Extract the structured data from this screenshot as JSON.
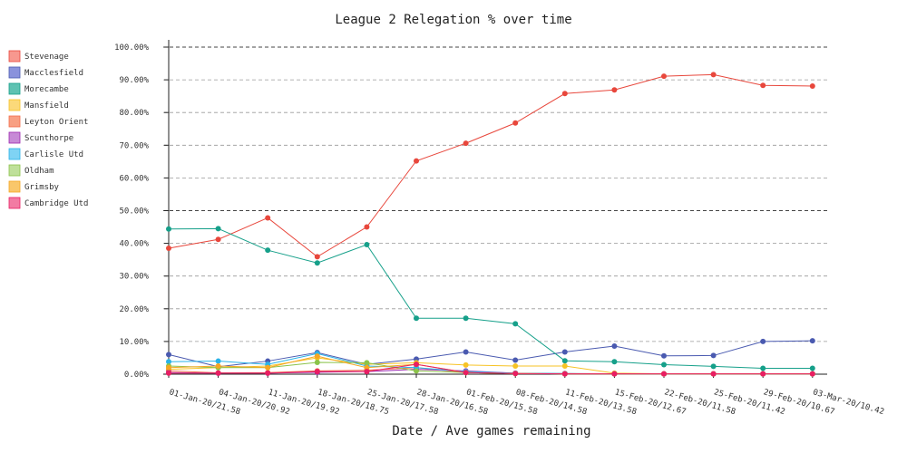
{
  "chart_data": {
    "type": "line",
    "title": "League 2 Relegation % over time",
    "xlabel": "Date / Ave games remaining",
    "ylabel": "",
    "ylim": [
      0,
      100
    ],
    "y_ticks": [
      "0.00%",
      "10.00%",
      "20.00%",
      "30.00%",
      "40.00%",
      "50.00%",
      "60.00%",
      "70.00%",
      "80.00%",
      "90.00%",
      "100.00%"
    ],
    "x": [
      "01-Jan-20/21.58",
      "04-Jan-20/20.92",
      "11-Jan-20/19.92",
      "18-Jan-20/18.75",
      "25-Jan-20/17.58",
      "28-Jan-20/16.58",
      "01-Feb-20/15.58",
      "08-Feb-20/14.58",
      "11-Feb-20/13.58",
      "15-Feb-20/12.67",
      "22-Feb-20/11.58",
      "25-Feb-20/11.42",
      "29-Feb-20/10.67",
      "03-Mar-20/10.42"
    ],
    "legend_position": "left",
    "grid": true,
    "series": [
      {
        "name": "Stevenage",
        "color": "#e8473c",
        "legend_color": "#f7988f",
        "values": [
          38.5,
          41.2,
          47.8,
          35.9,
          45.0,
          65.2,
          70.6,
          76.8,
          85.8,
          86.9,
          91.1,
          91.6,
          88.3,
          88.1
        ]
      },
      {
        "name": "Macclesfield",
        "color": "#4a5ab0",
        "legend_color": "#8a92dc",
        "values": [
          6.0,
          2.3,
          4.0,
          6.6,
          3.0,
          4.6,
          6.8,
          4.3,
          6.8,
          8.6,
          5.6,
          5.7,
          10.0,
          10.2
        ]
      },
      {
        "name": "Morecambe",
        "color": "#16a08a",
        "legend_color": "#5fc2b2",
        "values": [
          44.4,
          44.5,
          37.9,
          34.0,
          39.6,
          17.1,
          17.1,
          15.4,
          4.1,
          3.8,
          2.9,
          2.4,
          1.8,
          1.8
        ]
      },
      {
        "name": "Mansfield",
        "color": "#f7c325",
        "legend_color": "#fbd97a",
        "values": [
          1.5,
          2.0,
          2.5,
          5.0,
          3.0,
          3.5,
          2.8,
          2.5,
          2.5,
          0.3,
          0.1,
          0.1,
          0.1,
          0.1
        ]
      },
      {
        "name": "Leyton Orient",
        "color": "#f26b4a",
        "legend_color": "#f8a083",
        "values": [
          1.0,
          0.4,
          0.5,
          1.0,
          1.2,
          2.0,
          0.5,
          0.2,
          0.2,
          0.1,
          0.1,
          0.1,
          0.1,
          0.1
        ]
      },
      {
        "name": "Scunthorpe",
        "color": "#9c27b0",
        "legend_color": "#c78ad6",
        "values": [
          0.5,
          0.3,
          0.3,
          0.6,
          0.8,
          1.5,
          1.0,
          0.3,
          0.1,
          0.1,
          0.1,
          0.1,
          0.1,
          0.1
        ]
      },
      {
        "name": "Carlisle Utd",
        "color": "#2ab3e8",
        "legend_color": "#7fd3f4",
        "values": [
          3.8,
          4.0,
          3.0,
          6.3,
          2.5,
          2.0,
          0.8,
          0.3,
          0.2,
          0.1,
          0.1,
          0.1,
          0.1,
          0.1
        ]
      },
      {
        "name": "Oldham",
        "color": "#8bc34a",
        "legend_color": "#bfe09a",
        "values": [
          2.5,
          2.0,
          2.0,
          3.6,
          3.5,
          1.0,
          0.5,
          0.2,
          0.1,
          0.1,
          0.1,
          0.1,
          0.1,
          0.1
        ]
      },
      {
        "name": "Grimsby",
        "color": "#f5a623",
        "legend_color": "#f9c76b",
        "values": [
          2.0,
          2.5,
          2.0,
          5.5,
          2.0,
          3.0,
          0.5,
          0.2,
          0.1,
          0.1,
          0.1,
          0.1,
          0.1,
          0.1
        ]
      },
      {
        "name": "Cambridge Utd",
        "color": "#e91e63",
        "legend_color": "#f27ba3",
        "values": [
          0.3,
          0.3,
          0.3,
          0.8,
          0.8,
          3.0,
          0.5,
          0.2,
          0.1,
          0.1,
          0.1,
          0.1,
          0.1,
          0.1
        ]
      }
    ]
  }
}
